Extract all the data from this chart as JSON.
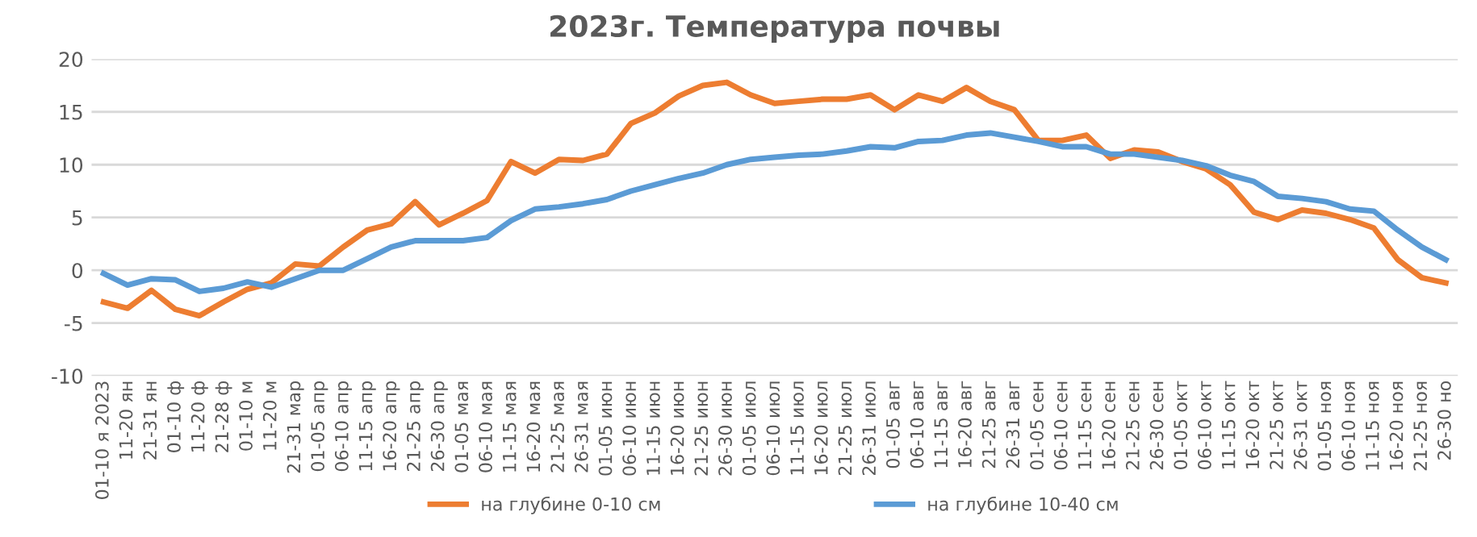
{
  "chart_data": {
    "type": "line",
    "title": "2023г. Температура почвы",
    "categories": [
      "01-10 я 2023",
      "11-20 ян",
      "21-31 ян",
      "01-10 ф",
      "11-20 ф",
      "21-28 ф",
      "01-10 м",
      "11-20 м",
      "21-31 мар",
      "01-05 апр",
      "06-10 апр",
      "11-15 апр",
      "16-20 апр",
      "21-25 апр",
      "26-30 апр",
      "01-05 мая",
      "06-10 мая",
      "11-15 мая",
      "16-20 мая",
      "21-25 мая",
      "26-31 мая",
      "01-05 июн",
      "06-10 июн",
      "11-15 июн",
      "16-20 июн",
      "21-25 июн",
      "26-30 июн",
      "01-05 июл",
      "06-10 июл",
      "11-15 июл",
      "16-20 июл",
      "21-25 июл",
      "26-31 июл",
      "01-05 авг",
      "06-10 авг",
      "11-15 авг",
      "16-20 авг",
      "21-25 авг",
      "26-31 авг",
      "01-05 сен",
      "06-10 сен",
      "11-15 сен",
      "16-20 сен",
      "21-25 сен",
      "26-30 сен",
      "01-05 окт",
      "06-10 окт",
      "11-15 окт",
      "16-20 окт",
      "21-25 окт",
      "26-31 окт",
      "01-05 ноя",
      "06-10 ноя",
      "11-15 ноя",
      "16-20 ноя",
      "21-25 ноя",
      "26-30 но"
    ],
    "series": [
      {
        "name": "на глубине 0-10 см",
        "color": "#ed7d31",
        "values": [
          -3.0,
          -3.6,
          -1.9,
          -3.7,
          -4.3,
          -3.0,
          -1.8,
          -1.2,
          0.6,
          0.4,
          2.2,
          3.8,
          4.4,
          6.5,
          4.3,
          5.4,
          6.6,
          10.3,
          9.2,
          10.5,
          10.4,
          11.0,
          13.9,
          14.9,
          16.5,
          17.5,
          17.8,
          16.6,
          15.8,
          16.0,
          16.2,
          16.2,
          16.6,
          15.2,
          16.6,
          16.0,
          17.3,
          16.0,
          15.2,
          12.3,
          12.3,
          12.8,
          10.6,
          11.4,
          11.2,
          10.3,
          9.6,
          8.1,
          5.5,
          4.8,
          5.7,
          5.4,
          4.8,
          4.0,
          1.0,
          -0.7,
          -1.2
        ]
      },
      {
        "name": "на глубине 10-40 см",
        "color": "#5b9bd5",
        "values": [
          -0.3,
          -1.4,
          -0.8,
          -0.9,
          -2.0,
          -1.7,
          -1.1,
          -1.6,
          -0.8,
          0.0,
          0.0,
          1.1,
          2.2,
          2.8,
          2.8,
          2.8,
          3.1,
          4.7,
          5.8,
          6.0,
          6.3,
          6.7,
          7.5,
          8.1,
          8.7,
          9.2,
          10.0,
          10.5,
          10.7,
          10.9,
          11.0,
          11.3,
          11.7,
          11.6,
          12.2,
          12.3,
          12.8,
          13.0,
          12.6,
          12.2,
          11.7,
          11.7,
          11.0,
          11.0,
          10.7,
          10.4,
          9.9,
          9.0,
          8.4,
          7.0,
          6.8,
          6.5,
          5.8,
          5.6,
          3.8,
          2.2,
          1.0
        ]
      }
    ],
    "ylim": [
      -10,
      20
    ],
    "yticks": [
      -10,
      -5,
      0,
      5,
      10,
      15,
      20
    ],
    "grid": "y",
    "legend": "bottom",
    "marker": "none",
    "line_style": "solid"
  }
}
